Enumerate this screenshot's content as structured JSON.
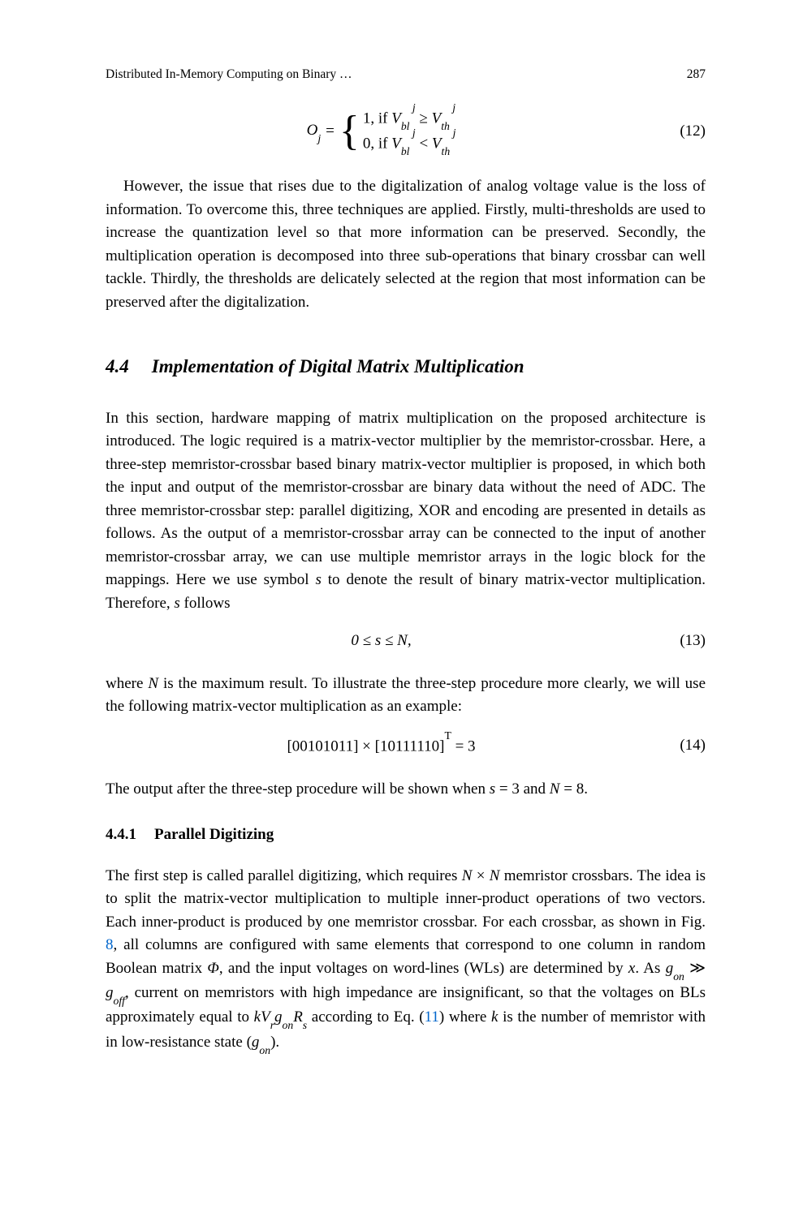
{
  "header": {
    "running_title": "Distributed In-Memory Computing on Binary …",
    "page_number": "287"
  },
  "eq12": {
    "lhs": "O",
    "lhs_sub": "j",
    "case1_prefix": "1,  if ",
    "case1_V": "V",
    "case1_bl": "bl",
    "case1_rel": " ≥ ",
    "case1_th": "th",
    "case2_prefix": "0,  if ",
    "case2_rel": " < ",
    "sup_j": " j",
    "number": "(12)"
  },
  "p1": "However, the issue that rises due to the digitalization of analog voltage value is the loss of information. To overcome this, three techniques are applied. Firstly, multi-thresholds are used to increase the quantization level so that more information can be preserved. Secondly, the multiplication operation is decomposed into three sub-operations that binary crossbar can well tackle. Thirdly, the thresholds are delicately selected at the region that most information can be preserved after the digitalization.",
  "section44": {
    "num": "4.4",
    "title": "Implementation of Digital Matrix Multiplication"
  },
  "p2a": "In this section, hardware mapping of matrix multiplication on the proposed architecture is introduced. The logic required is a matrix-vector multiplier by the memristor-crossbar. Here, a three-step memristor-crossbar based binary matrix-vector multiplier is proposed, in which both the input and output of the memristor-crossbar are binary data without the need of ADC. The three memristor-crossbar step: parallel digitizing, XOR and encoding are presented in details as follows. As the output of a memristor-crossbar array can be connected to the input of another memristor-crossbar array, we can use multiple memristor arrays in the logic block for the mappings. Here we use symbol ",
  "p2_s1": "s",
  "p2b": " to denote the result of binary matrix-vector multiplication. Therefore, ",
  "p2_s2": "s",
  "p2c": " follows",
  "eq13": {
    "text": "0 ≤ s ≤ N,",
    "number": "(13)"
  },
  "p3a": "where ",
  "p3_N": "N",
  "p3b": " is the maximum result. To illustrate the three-step procedure more clearly, we will use the following matrix-vector multiplication as an example:",
  "eq14": {
    "lhs_open": "[",
    "v1": "00101011",
    "mid": "] × [",
    "v2": "10111110",
    "rhs_close": "]",
    "sup_T": "T",
    "eq_result": " = 3",
    "number": "(14)"
  },
  "p4a": "The output after the three-step procedure will be shown when ",
  "p4_s": "s",
  "p4b": " = 3 and ",
  "p4_N": "N",
  "p4c": " = 8.",
  "section441": {
    "num": "4.4.1",
    "title": "Parallel Digitizing"
  },
  "p5a": "The first step is called parallel digitizing, which requires ",
  "p5_NN1": "N",
  "p5_times": " × ",
  "p5_NN2": "N",
  "p5b": " memristor crossbars. The idea is to split the matrix-vector multiplication to multiple inner-product operations of two vectors. Each inner-product is produced by one memristor crossbar. For each crossbar, as shown in Fig. ",
  "p5_fig": "8",
  "p5c": ", all columns are configured with same elements that correspond to one column in random Boolean matrix ",
  "p5_Phi": "Φ",
  "p5d": ", and the input voltages on word-lines (WLs) are determined by ",
  "p5_x": "x",
  "p5e": ". As ",
  "p5_gon": "g",
  "p5_on": "on",
  "p5_gg": " ≫ ",
  "p5_goff": "g",
  "p5_off": "off",
  "p5f": ", current on memristors with high impedance are insignificant, so that the voltages on BLs approximately equal to ",
  "p5_kVr": "kV",
  "p5_r": "r",
  "p5_gon2": "g",
  "p5_on2": "on",
  "p5_Rs": "R",
  "p5_s": "s",
  "p5g": " according to Eq. (",
  "p5_eqref": "11",
  "p5h": ") where ",
  "p5_k": "k",
  "p5i": " is the number of memristor with in low-resistance state (",
  "p5_gon3": "g",
  "p5_on3": "on",
  "p5j": ")."
}
